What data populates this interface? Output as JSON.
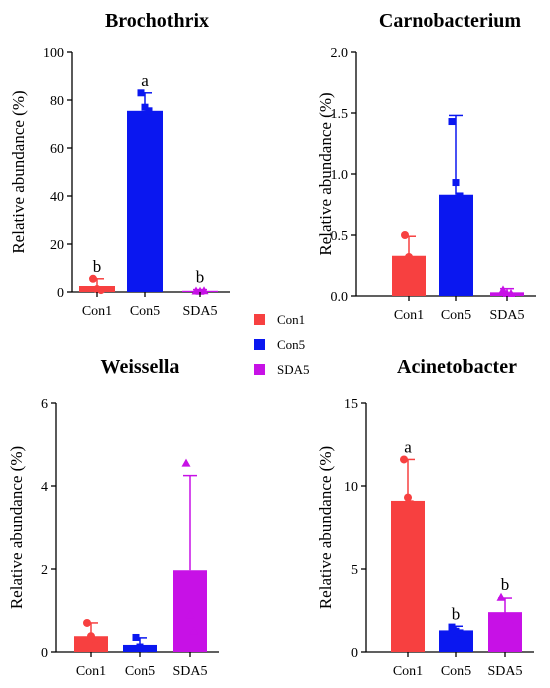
{
  "legend": [
    {
      "label": "Con1",
      "color": "#F74040"
    },
    {
      "label": "Con5",
      "color": "#0A17F0"
    },
    {
      "label": "SDA5",
      "color": "#C711E6"
    }
  ],
  "chart_data": [
    {
      "type": "bar",
      "title": "Brochothrix",
      "ylabel": "Relative abundance (%)",
      "ylim": [
        0,
        100
      ],
      "yticks": [
        "0",
        "20",
        "40",
        "60",
        "80",
        "100"
      ],
      "categories": [
        "Con1",
        "Con5",
        "SDA5"
      ],
      "values": [
        2.5,
        75.5,
        0.4
      ],
      "error_upper": [
        5.5,
        83,
        1.0
      ],
      "points": [
        [
          5.5,
          1.2,
          0.8
        ],
        [
          83,
          77,
          75.5
        ],
        [
          0.4,
          0.3,
          0.5
        ]
      ],
      "markers": [
        "circle",
        "square",
        "triangle"
      ],
      "letters": [
        "b",
        "a",
        "b"
      ]
    },
    {
      "type": "bar",
      "title": "Carnobacterium",
      "ylabel": "Relative abundance (%)",
      "ylim": [
        0,
        2.0
      ],
      "yticks": [
        "0.0",
        "0.5",
        "1.0",
        "1.5",
        "2.0"
      ],
      "categories": [
        "Con1",
        "Con5",
        "SDA5"
      ],
      "values": [
        0.33,
        0.83,
        0.03
      ],
      "error_upper": [
        0.49,
        1.48,
        0.06
      ],
      "points": [
        [
          0.5,
          0.32,
          0.25
        ],
        [
          1.43,
          0.93,
          0.82
        ],
        [
          0.05,
          0.02,
          0.02
        ]
      ],
      "markers": [
        "circle",
        "square",
        "triangle"
      ],
      "letters": [
        "",
        "",
        ""
      ]
    },
    {
      "type": "bar",
      "title": "Weissella",
      "ylabel": "Relative abundance (%)",
      "ylim": [
        0,
        6
      ],
      "yticks": [
        "0",
        "2",
        "4",
        "6"
      ],
      "categories": [
        "Con1",
        "Con5",
        "SDA5"
      ],
      "values": [
        0.38,
        0.17,
        1.97
      ],
      "error_upper": [
        0.7,
        0.34,
        4.25
      ],
      "points": [
        [
          0.7,
          0.38,
          0.15
        ],
        [
          0.35,
          0.12,
          0.08
        ],
        [
          4.55,
          0.9,
          0.5
        ]
      ],
      "markers": [
        "circle",
        "square",
        "triangle"
      ],
      "letters": [
        "",
        "",
        ""
      ]
    },
    {
      "type": "bar",
      "title": "Acinetobacter",
      "ylabel": "Relative abundance (%)",
      "ylim": [
        0,
        15
      ],
      "yticks": [
        "0",
        "5",
        "10",
        "15"
      ],
      "categories": [
        "Con1",
        "Con5",
        "SDA5"
      ],
      "values": [
        9.1,
        1.3,
        2.4
      ],
      "error_upper": [
        11.6,
        1.55,
        3.25
      ],
      "points": [
        [
          11.6,
          9.3,
          8.9
        ],
        [
          1.5,
          1.25,
          1.15
        ],
        [
          3.3,
          2.2,
          1.9
        ]
      ],
      "markers": [
        "circle",
        "square",
        "triangle"
      ],
      "letters": [
        "a",
        "b",
        "b"
      ]
    }
  ]
}
